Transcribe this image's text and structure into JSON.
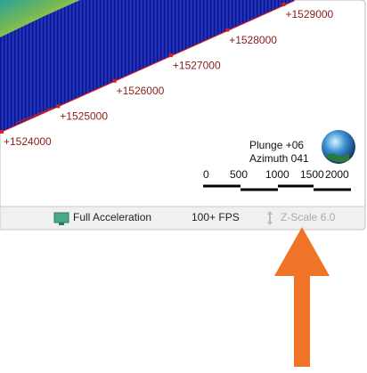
{
  "viewport": {
    "grid_labels": [
      "+1524000",
      "+1525000",
      "+1526000",
      "+1527000",
      "+1528000",
      "+1529000"
    ],
    "orientation": {
      "plunge": "Plunge +06",
      "azimuth": "Azimuth 041"
    },
    "scale_bar": {
      "labels": [
        "0",
        "500",
        "1000",
        "1500",
        "2000"
      ]
    }
  },
  "status_bar": {
    "acceleration": "Full Acceleration",
    "fps": "100+ FPS",
    "z_scale": "Z-Scale 6.0"
  }
}
